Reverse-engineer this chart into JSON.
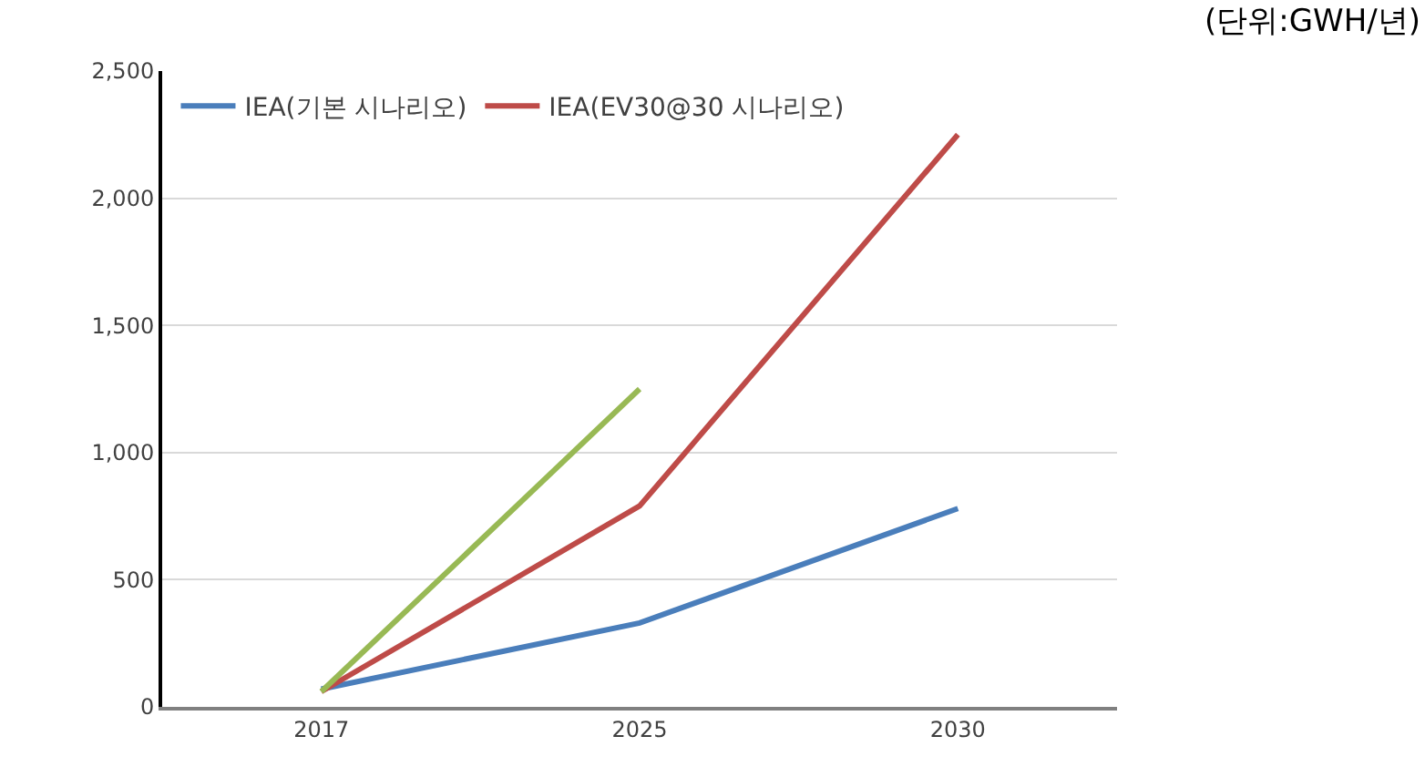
{
  "chart_data": {
    "type": "line",
    "categories": [
      "2017",
      "2025",
      "2030"
    ],
    "series": [
      {
        "name": "IEA(기본 시나리오)",
        "color": "#4a7ebb",
        "values": [
          70,
          330,
          780
        ]
      },
      {
        "name": "IEA(EV30@30 시나리오)",
        "color": "#be4b48",
        "values": [
          60,
          790,
          2250
        ]
      },
      {
        "color": "#98b954",
        "values": [
          60,
          1250,
          null
        ]
      }
    ],
    "ylim": [
      0,
      2500
    ],
    "yticks": [
      {
        "value": 0,
        "label": "0"
      },
      {
        "value": 500,
        "label": "500"
      },
      {
        "value": 1000,
        "label": "1,000"
      },
      {
        "value": 1500,
        "label": "1,500"
      },
      {
        "value": 2000,
        "label": "2,000"
      },
      {
        "value": 2500,
        "label": "2,500"
      }
    ],
    "grid": "y",
    "legend": "top left",
    "marker": "none",
    "line_style": "solid",
    "annotations": [
      "(단위:GWH/년)"
    ]
  }
}
